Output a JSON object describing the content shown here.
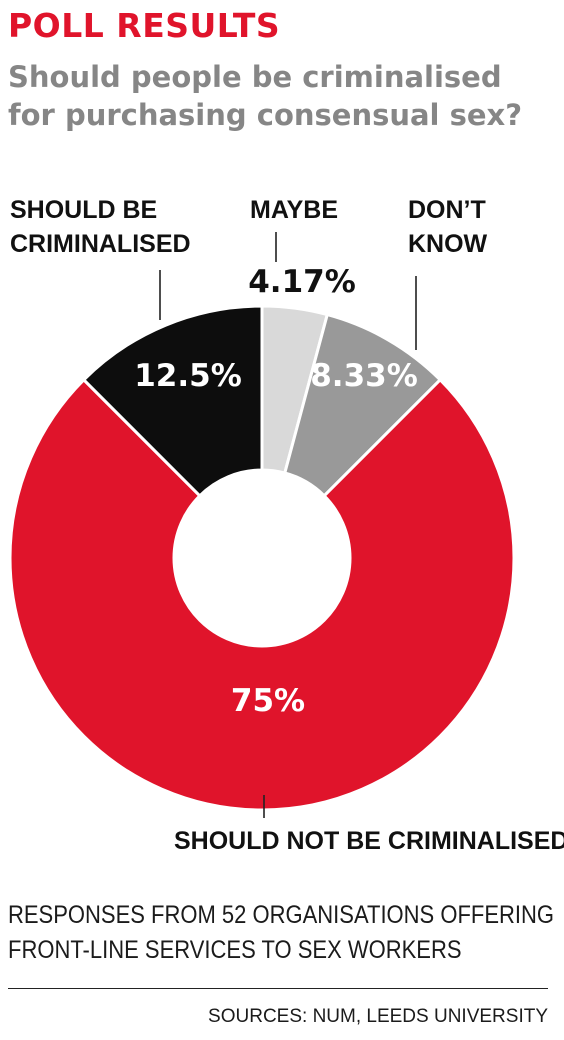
{
  "header": {
    "kicker": "POLL RESULTS",
    "question_lines": [
      "Should people be criminalised",
      "for purchasing consensual sex?"
    ]
  },
  "colors": {
    "accent_red": "#e0142b",
    "question_grey": "#868686",
    "maybe_light_grey": "#d9d9d9",
    "dont_know_grey": "#999999",
    "criminalised_black": "#0d0d0d"
  },
  "chart_data": {
    "type": "pie",
    "style": "donut",
    "title": "Should people be criminalised for purchasing consensual sex?",
    "slices": [
      {
        "label_lines": [
          "MAYBE"
        ],
        "value": 4.17,
        "value_label": "4.17%",
        "color": "#d9d9d9"
      },
      {
        "label_lines": [
          "DON’T",
          "KNOW"
        ],
        "value": 8.33,
        "value_label": "8.33%",
        "color": "#999999"
      },
      {
        "label_lines": [
          "SHOULD NOT BE CRIMINALISED"
        ],
        "value": 75,
        "value_label": "75%",
        "color": "#e0142b"
      },
      {
        "label_lines": [
          "SHOULD BE",
          "CRIMINALISED"
        ],
        "value": 12.5,
        "value_label": "12.5%",
        "color": "#0d0d0d"
      }
    ]
  },
  "footnote": {
    "lines": [
      "RESPONSES FROM 52 ORGANISATIONS OFFERING",
      "FRONT-LINE SERVICES TO SEX WORKERS"
    ]
  },
  "sources": "SOURCES: NUM, LEEDS UNIVERSITY"
}
